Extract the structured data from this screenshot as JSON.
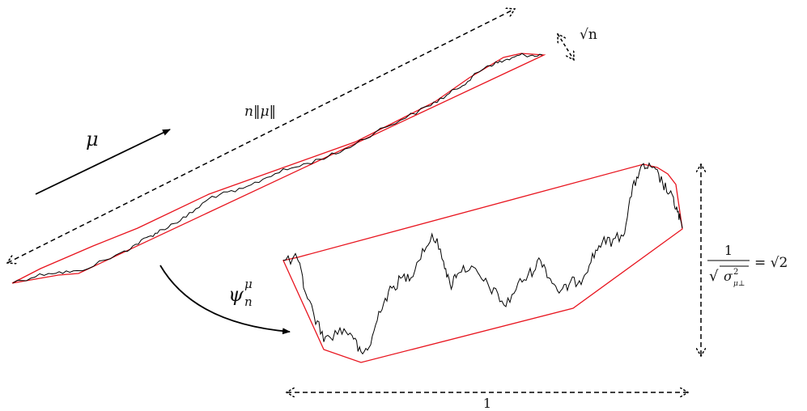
{
  "labels": {
    "mu": "μ",
    "length": "n‖μ‖",
    "sqrt_n": "√n",
    "psi_base": "ψ",
    "psi_sup": "μ",
    "psi_sub": "n",
    "width": "1",
    "frac_num": "1",
    "frac_sqrt": "√",
    "frac_sigma": "σ",
    "frac_sup": "2",
    "frac_sub": "μ⊥",
    "equals": "= √2"
  },
  "colors": {
    "hull": "#e8141e",
    "path": "#000000",
    "arrow": "#000000"
  }
}
